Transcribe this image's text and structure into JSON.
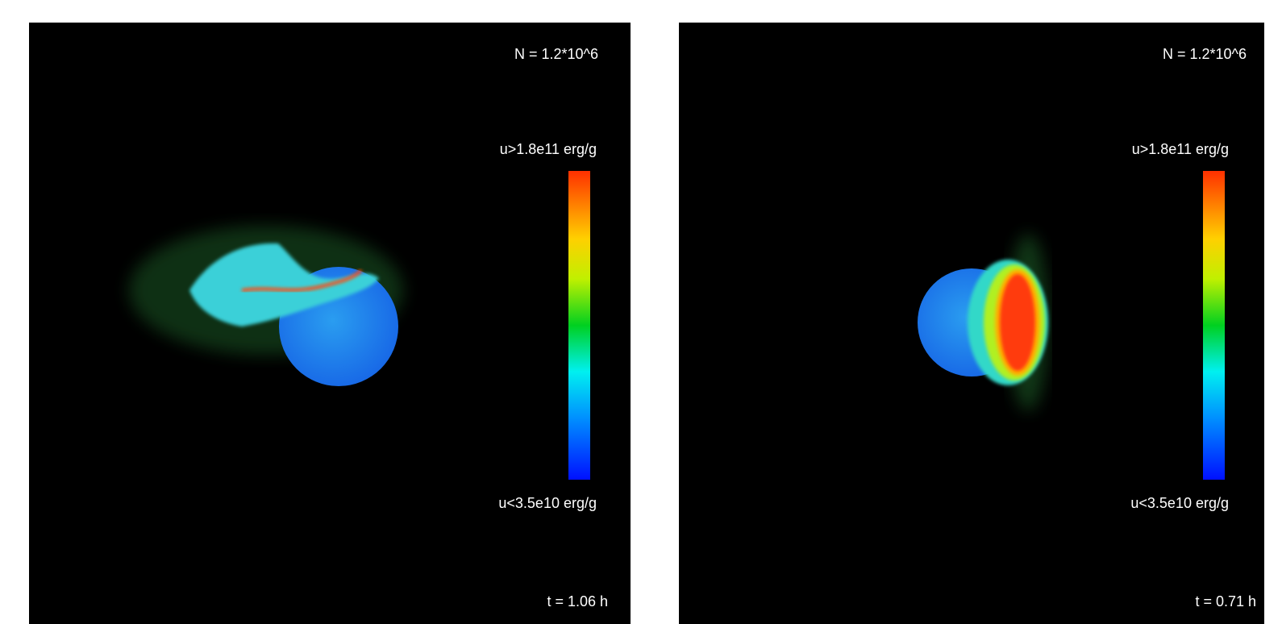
{
  "panels": [
    {
      "particles_label": "N = 1.2*10^6",
      "colorbar_max_label": "u>1.8e11 erg/g",
      "colorbar_min_label": "u<3.5e10 erg/g",
      "time_label": "t = 1.06 h"
    },
    {
      "particles_label": "N = 1.2*10^6",
      "colorbar_max_label": "u>1.8e11 erg/g",
      "colorbar_min_label": "u<3.5e10 erg/g",
      "time_label": "t = 0.71 h"
    }
  ]
}
